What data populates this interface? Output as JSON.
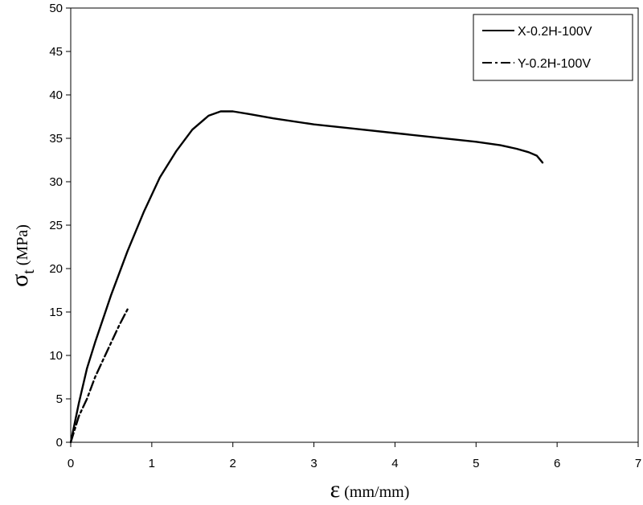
{
  "chart_data": {
    "type": "line",
    "title": "",
    "xlabel": {
      "symbol": "ε",
      "unit": "(mm/mm)"
    },
    "ylabel": {
      "symbol": "σ",
      "subscript": "t",
      "unit": "(MPa)"
    },
    "xlim": [
      0,
      7
    ],
    "ylim": [
      0,
      50
    ],
    "xticks": [
      0,
      1,
      2,
      3,
      4,
      5,
      6,
      7
    ],
    "yticks": [
      0,
      5,
      10,
      15,
      20,
      25,
      30,
      35,
      40,
      45,
      50
    ],
    "grid": false,
    "legend_position": "top-right",
    "series": [
      {
        "name": "X-0.2H-100V",
        "style": "solid",
        "color": "#000000",
        "x": [
          0,
          0.1,
          0.2,
          0.3,
          0.5,
          0.7,
          0.9,
          1.1,
          1.3,
          1.5,
          1.7,
          1.85,
          2.0,
          2.2,
          2.5,
          3.0,
          3.5,
          4.0,
          4.5,
          5.0,
          5.3,
          5.5,
          5.65,
          5.75,
          5.82
        ],
        "y": [
          0,
          4.5,
          8.5,
          11.5,
          17,
          22,
          26.5,
          30.5,
          33.5,
          36,
          37.6,
          38.1,
          38.1,
          37.8,
          37.3,
          36.6,
          36.1,
          35.6,
          35.1,
          34.6,
          34.2,
          33.8,
          33.4,
          33,
          32.2
        ]
      },
      {
        "name": "Y-0.2H-100V",
        "style": "dash-dot",
        "color": "#000000",
        "x": [
          0,
          0.1,
          0.2,
          0.3,
          0.4,
          0.5,
          0.6,
          0.7
        ],
        "y": [
          0,
          3,
          5,
          7.5,
          9.5,
          11.5,
          13.5,
          15.3
        ]
      }
    ]
  }
}
